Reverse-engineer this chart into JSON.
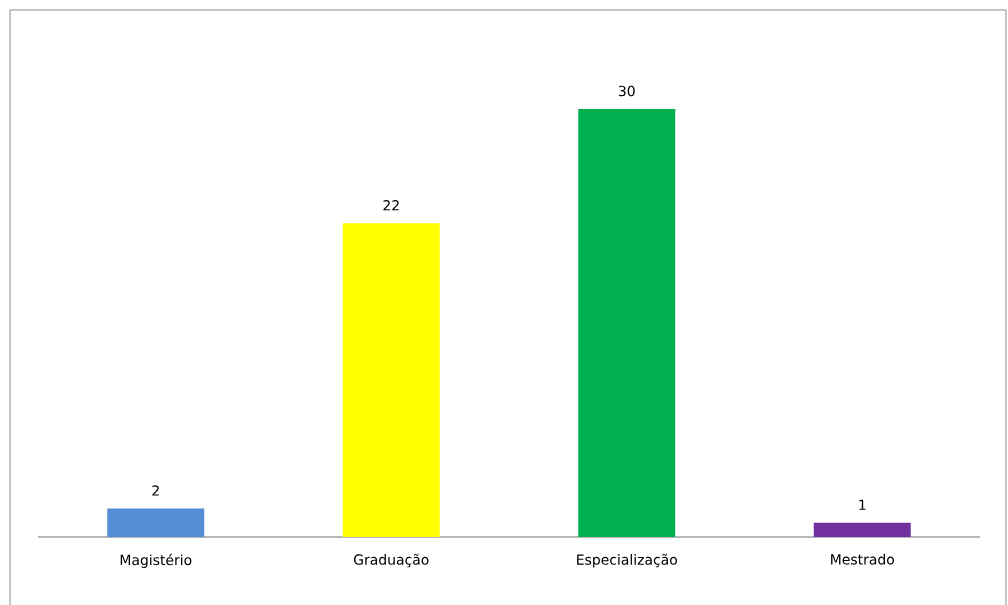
{
  "chart_data": {
    "type": "bar",
    "categories": [
      "Magistério",
      "Graduação",
      "Especialização",
      "Mestrado"
    ],
    "values": [
      2,
      22,
      30,
      1
    ],
    "colors": [
      "#558ed5",
      "#ffff00",
      "#00b050",
      "#7030a0"
    ],
    "data_labels": true
  }
}
